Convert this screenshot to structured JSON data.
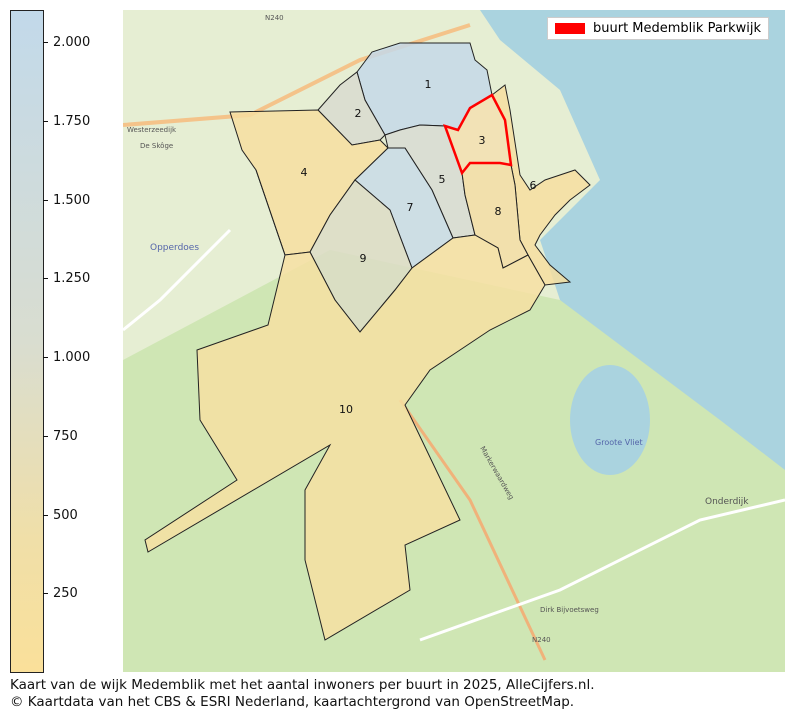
{
  "colorbar": {
    "ticks": [
      "2.000",
      "1.750",
      "1.500",
      "1.250",
      "1.000",
      "750",
      "500",
      "250"
    ],
    "colors": {
      "high": "#c2d9ea",
      "low": "#fae09a"
    }
  },
  "legend": {
    "label": "buurt Medemblik Parkwijk",
    "color": "#ff0000"
  },
  "map": {
    "regions": [
      {
        "label": "1",
        "color": "#c4d8e8"
      },
      {
        "label": "2",
        "color": "#d8dbcf"
      },
      {
        "label": "3",
        "color": "#f3dfb0",
        "highlight": true
      },
      {
        "label": "4",
        "color": "#f6dea0"
      },
      {
        "label": "5",
        "color": "#d7dbd2"
      },
      {
        "label": "6",
        "color": "#f6dea0"
      },
      {
        "label": "7",
        "color": "#c8dae6"
      },
      {
        "label": "8",
        "color": "#f3dda4"
      },
      {
        "label": "9",
        "color": "#dcdcc6"
      },
      {
        "label": "10",
        "color": "#f6dfa2"
      }
    ],
    "place_labels": [
      "Opperdoes",
      "Onderdijk",
      "Groote Vliet",
      "N240",
      "N240",
      "Dirk Bijvoetsweg",
      "Markerwaardweg",
      "Westerzeedijk",
      "De Skôge"
    ]
  },
  "caption": {
    "line1": "Kaart van de wijk Medemblik met het aantal inwoners per buurt in 2025, AlleCijfers.nl.",
    "line2": "© Kaartdata van het CBS & ESRI Nederland, kaartachtergrond van OpenStreetMap."
  }
}
